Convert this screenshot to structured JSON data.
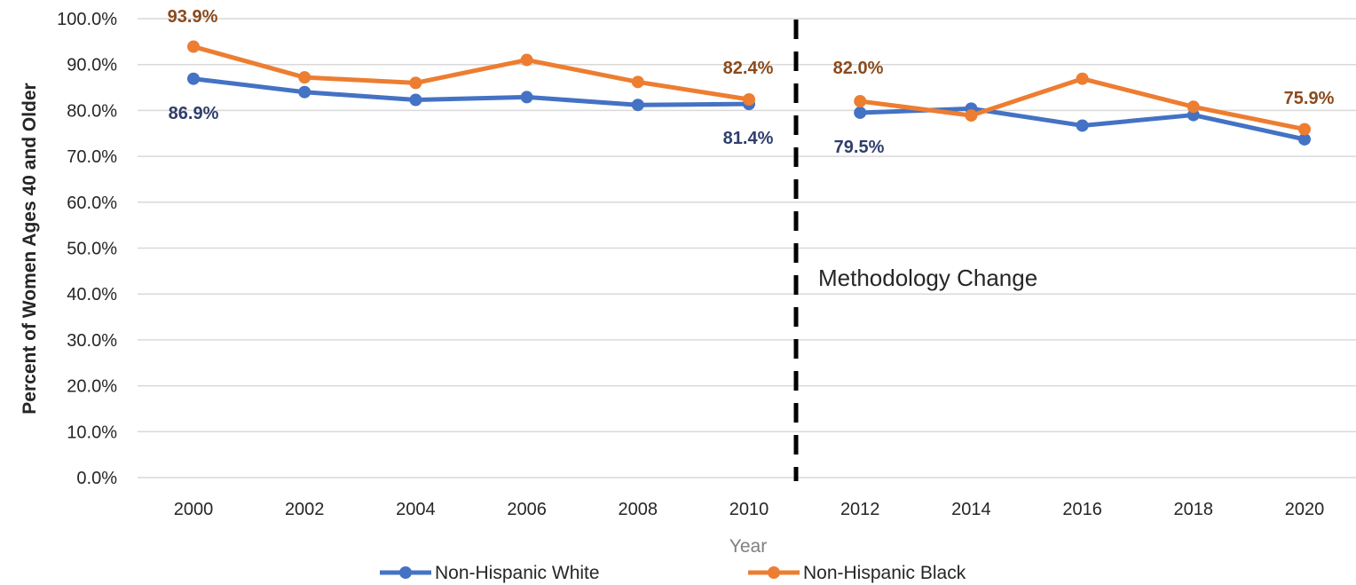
{
  "chart_data": {
    "type": "line",
    "title": "",
    "xlabel": "Year",
    "ylabel": "Percent of Women Ages 40 and Older",
    "x": [
      "2000",
      "2002",
      "2004",
      "2006",
      "2008",
      "2010",
      "2012",
      "2014",
      "2016",
      "2018",
      "2020"
    ],
    "y_ticks": [
      "0.0%",
      "10.0%",
      "20.0%",
      "30.0%",
      "40.0%",
      "50.0%",
      "60.0%",
      "70.0%",
      "80.0%",
      "90.0%",
      "100.0%"
    ],
    "ylim": [
      0,
      100
    ],
    "grid": true,
    "legend_position": "bottom",
    "series": [
      {
        "name": "Non-Hispanic White",
        "color": "#4472C4",
        "label_color": "#2F3E6B",
        "values": [
          86.9,
          84.0,
          82.3,
          82.9,
          81.2,
          81.4,
          79.5,
          80.4,
          76.7,
          79.0,
          73.7
        ],
        "data_labels": [
          {
            "index": 0,
            "text": "86.9%"
          },
          {
            "index": 5,
            "text": "81.4%"
          },
          {
            "index": 6,
            "text": "79.5%"
          }
        ]
      },
      {
        "name": "Non-Hispanic Black",
        "color": "#ED7D31",
        "label_color": "#8B4A1C",
        "values": [
          93.9,
          87.2,
          86.0,
          91.0,
          86.2,
          82.4,
          82.0,
          78.9,
          86.9,
          80.8,
          75.9
        ],
        "data_labels": [
          {
            "index": 0,
            "text": "93.9%"
          },
          {
            "index": 5,
            "text": "82.4%"
          },
          {
            "index": 6,
            "text": "82.0%"
          },
          {
            "index": 10,
            "text": "75.9%"
          }
        ]
      }
    ],
    "annotations": [
      {
        "text": "Methodology Change",
        "between": [
          "2010",
          "2012"
        ],
        "style": "dashed vertical line"
      }
    ]
  }
}
